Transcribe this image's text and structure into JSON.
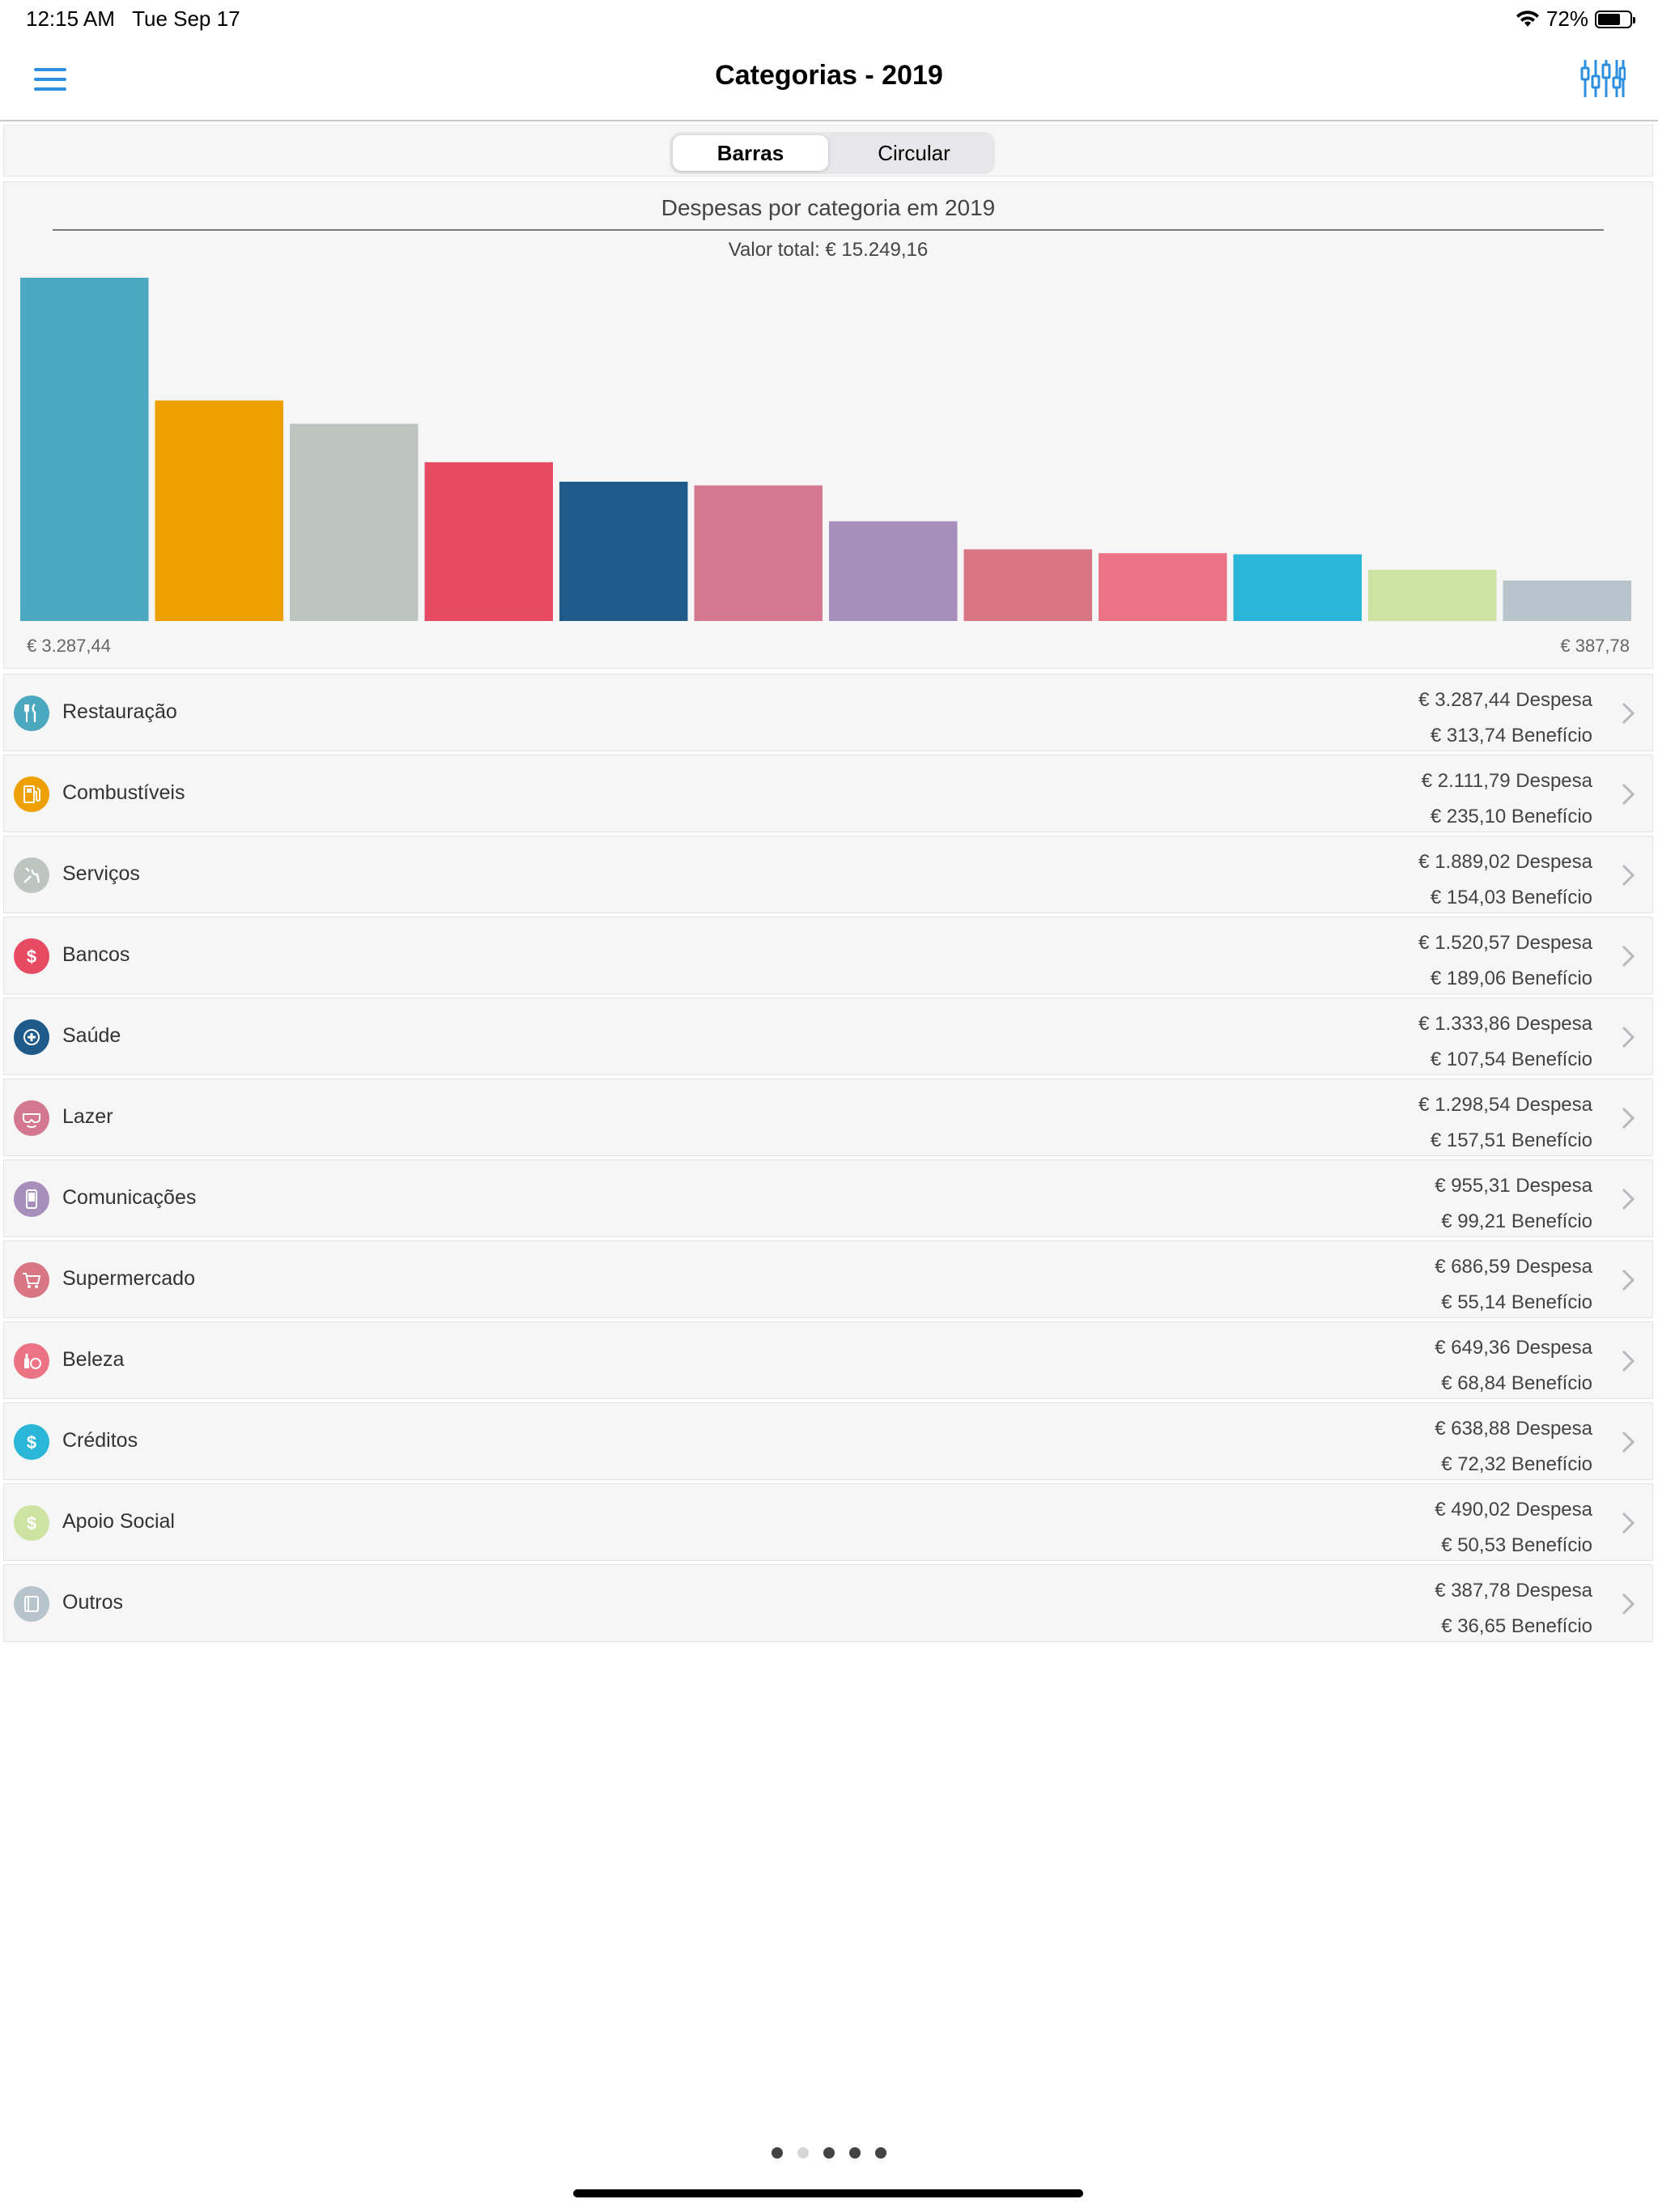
{
  "status": {
    "time": "12:15 AM",
    "date": "Tue Sep 17",
    "battery": "72%",
    "battery_level": 0.72
  },
  "navbar": {
    "title": "Categorias - 2019"
  },
  "segments": {
    "active": "Barras",
    "inactive": "Circular"
  },
  "chart": {
    "title": "Despesas por categoria em 2019",
    "subtitle": "Valor total: € 15.249,16",
    "max_label": "€ 3.287,44",
    "min_label": "€ 387,78"
  },
  "chart_data": {
    "type": "bar",
    "title": "Despesas por categoria em 2019",
    "subtitle": "Valor total: € 15.249,16",
    "categories": [
      "Restauração",
      "Combustíveis",
      "Serviços",
      "Bancos",
      "Saúde",
      "Lazer",
      "Comunicações",
      "Supermercado",
      "Beleza",
      "Créditos",
      "Apoio Social",
      "Outros"
    ],
    "values": [
      3287.44,
      2111.79,
      1889.02,
      1520.57,
      1333.86,
      1298.54,
      955.31,
      686.59,
      649.36,
      638.88,
      490.02,
      387.78
    ],
    "colors": [
      "#4ba8bf",
      "#eda000",
      "#bcc5c0",
      "#e64b63",
      "#1e5a8a",
      "#d3788e",
      "#a78fbb",
      "#d87684",
      "#ec7383",
      "#2ab6d6",
      "#cde3a2",
      "#b8c4cc"
    ],
    "ylim": [
      0,
      3287.44
    ]
  },
  "categories": [
    {
      "name": "Restauração",
      "despesa": "€ 3.287,44 Despesa",
      "beneficio": "€ 313,74 Benefício",
      "color": "#4ba8bf",
      "icon": "fork-knife-icon"
    },
    {
      "name": "Combustíveis",
      "despesa": "€ 2.111,79 Despesa",
      "beneficio": "€ 235,10 Benefício",
      "color": "#eda000",
      "icon": "fuel-pump-icon"
    },
    {
      "name": "Serviços",
      "despesa": "€ 1.889,02 Despesa",
      "beneficio": "€ 154,03 Benefício",
      "color": "#bcc5c0",
      "icon": "tools-icon"
    },
    {
      "name": "Bancos",
      "despesa": "€ 1.520,57 Despesa",
      "beneficio": "€ 189,06 Benefício",
      "color": "#e64b63",
      "icon": "dollar-icon"
    },
    {
      "name": "Saúde",
      "despesa": "€ 1.333,86 Despesa",
      "beneficio": "€ 107,54 Benefício",
      "color": "#1e5a8a",
      "icon": "medical-cross-icon"
    },
    {
      "name": "Lazer",
      "despesa": "€ 1.298,54 Despesa",
      "beneficio": "€ 157,51 Benefício",
      "color": "#d3788e",
      "icon": "diving-mask-icon"
    },
    {
      "name": "Comunicações",
      "despesa": "€ 955,31 Despesa",
      "beneficio": "€ 99,21 Benefício",
      "color": "#a78fbb",
      "icon": "phone-icon"
    },
    {
      "name": "Supermercado",
      "despesa": "€ 686,59 Despesa",
      "beneficio": "€ 55,14 Benefício",
      "color": "#d87684",
      "icon": "cart-icon"
    },
    {
      "name": "Beleza",
      "despesa": "€ 649,36 Despesa",
      "beneficio": "€ 68,84 Benefício",
      "color": "#ec7383",
      "icon": "cosmetics-icon"
    },
    {
      "name": "Créditos",
      "despesa": "€ 638,88 Despesa",
      "beneficio": "€ 72,32 Benefício",
      "color": "#2ab6d6",
      "icon": "dollar-icon"
    },
    {
      "name": "Apoio Social",
      "despesa": "€ 490,02 Despesa",
      "beneficio": "€ 50,53 Benefício",
      "color": "#cde3a2",
      "icon": "dollar-icon"
    },
    {
      "name": "Outros",
      "despesa": "€ 387,78 Despesa",
      "beneficio": "€ 36,65 Benefício",
      "color": "#b8c4cc",
      "icon": "box-icon"
    }
  ],
  "pager": {
    "count": 5,
    "active_index": 1
  }
}
